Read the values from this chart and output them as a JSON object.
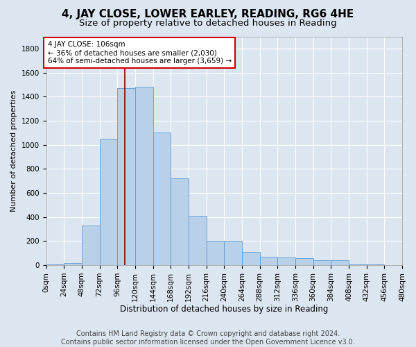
{
  "title": "4, JAY CLOSE, LOWER EARLEY, READING, RG6 4HE",
  "subtitle": "Size of property relative to detached houses in Reading",
  "xlabel": "Distribution of detached houses by size in Reading",
  "ylabel": "Number of detached properties",
  "footer_line1": "Contains HM Land Registry data © Crown copyright and database right 2024.",
  "footer_line2": "Contains public sector information licensed under the Open Government Licence v3.0.",
  "bin_edges": [
    0,
    24,
    48,
    72,
    96,
    120,
    144,
    168,
    192,
    216,
    240,
    264,
    288,
    312,
    336,
    360,
    384,
    408,
    432,
    456,
    480
  ],
  "bar_heights": [
    5,
    20,
    330,
    1050,
    1470,
    1480,
    1100,
    720,
    410,
    200,
    200,
    110,
    70,
    65,
    60,
    40,
    40,
    5,
    5,
    0
  ],
  "bar_color": "#b8d0e8",
  "bar_edge_color": "#5b9bd5",
  "property_size": 106,
  "vline_color": "#8b0000",
  "annotation_text": "4 JAY CLOSE: 106sqm\n← 36% of detached houses are smaller (2,030)\n64% of semi-detached houses are larger (3,659) →",
  "annotation_box_color": "#ffffff",
  "annotation_box_edge_color": "#cc0000",
  "ylim": [
    0,
    1900
  ],
  "yticks": [
    0,
    200,
    400,
    600,
    800,
    1000,
    1200,
    1400,
    1600,
    1800
  ],
  "xlim": [
    0,
    480
  ],
  "background_color": "#dce6f0",
  "plot_background_color": "#dce6f0",
  "title_fontsize": 11,
  "subtitle_fontsize": 9.5,
  "axis_label_fontsize": 8.5,
  "tick_fontsize": 7.5,
  "footer_fontsize": 7,
  "ylabel_fontsize": 8
}
